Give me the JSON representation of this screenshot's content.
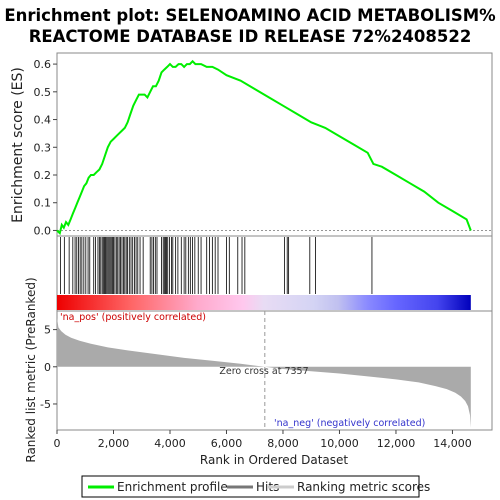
{
  "chart_data": {
    "type": "line",
    "title_line1": "Enrichment plot: SELENOAMINO ACID METABOLISM%",
    "title_line2": "REACTOME DATABASE ID RELEASE 72%2408522",
    "es_panel": {
      "ylabel": "Enrichment score (ES)",
      "yticks": [
        "0.0",
        "0.1",
        "0.2",
        "0.3",
        "0.4",
        "0.5",
        "0.6"
      ],
      "ylim": [
        -0.02,
        0.64
      ],
      "series": [
        {
          "name": "Enrichment profile",
          "x": [
            0,
            100,
            170,
            240,
            320,
            400,
            480,
            560,
            640,
            720,
            800,
            880,
            960,
            1040,
            1120,
            1200,
            1300,
            1400,
            1500,
            1600,
            1700,
            1800,
            1900,
            2000,
            2100,
            2200,
            2300,
            2400,
            2500,
            2600,
            2700,
            2800,
            2900,
            3000,
            3100,
            3200,
            3300,
            3400,
            3500,
            3600,
            3700,
            3800,
            3900,
            4000,
            4100,
            4200,
            4300,
            4400,
            4500,
            4600,
            4700,
            4800,
            4900,
            5000,
            5100,
            5300,
            5500,
            5700,
            6000,
            6500,
            7000,
            7500,
            8000,
            8500,
            9000,
            9500,
            10000,
            10500,
            11000,
            11200,
            11500,
            12000,
            12500,
            13000,
            13500,
            14000,
            14500,
            14650
          ],
          "y": [
            0.0,
            -0.01,
            0.02,
            0.01,
            0.03,
            0.02,
            0.04,
            0.06,
            0.08,
            0.1,
            0.12,
            0.14,
            0.16,
            0.17,
            0.19,
            0.2,
            0.2,
            0.21,
            0.22,
            0.24,
            0.27,
            0.3,
            0.32,
            0.33,
            0.34,
            0.35,
            0.36,
            0.37,
            0.39,
            0.42,
            0.45,
            0.47,
            0.49,
            0.49,
            0.49,
            0.48,
            0.5,
            0.52,
            0.52,
            0.54,
            0.57,
            0.58,
            0.59,
            0.6,
            0.59,
            0.59,
            0.6,
            0.6,
            0.59,
            0.6,
            0.6,
            0.61,
            0.6,
            0.6,
            0.6,
            0.59,
            0.59,
            0.58,
            0.56,
            0.54,
            0.51,
            0.48,
            0.45,
            0.42,
            0.39,
            0.37,
            0.34,
            0.31,
            0.28,
            0.24,
            0.23,
            0.2,
            0.17,
            0.14,
            0.1,
            0.07,
            0.04,
            0.0
          ]
        }
      ]
    },
    "hits": [
      120,
      260,
      430,
      560,
      640,
      700,
      760,
      820,
      880,
      950,
      1020,
      1100,
      1160,
      1300,
      1360,
      1450,
      1500,
      1550,
      1600,
      1640,
      1680,
      1720,
      1760,
      1800,
      1840,
      1880,
      1920,
      1960,
      2000,
      2050,
      2100,
      2150,
      2200,
      2250,
      2300,
      2350,
      2400,
      2450,
      2500,
      2560,
      2620,
      2680,
      2740,
      2800,
      2860,
      2940,
      3050,
      3300,
      3360,
      3420,
      3480,
      3540,
      3700,
      3760,
      3800,
      3840,
      3880,
      3920,
      3980,
      4050,
      4100,
      4200,
      4280,
      4400,
      4500,
      4560,
      4650,
      4720,
      4800,
      4880,
      5000,
      5100,
      5300,
      5400,
      5500,
      5600,
      5700,
      6000,
      6100,
      6400,
      6550,
      6650,
      8050,
      8150,
      8200,
      8950,
      9150,
      11150
    ],
    "ranked_metric": {
      "ylabel": "Ranked list metric (PreRanked)",
      "yticks": [
        "5",
        "0",
        "-5"
      ],
      "ylim": [
        -8.5,
        7.5
      ],
      "x": [
        0,
        50,
        150,
        300,
        500,
        800,
        1200,
        1800,
        2500,
        3500,
        4500,
        5500,
        6500,
        7357,
        8000,
        9000,
        10000,
        11000,
        12000,
        12800,
        13400,
        13800,
        14100,
        14300,
        14450,
        14550,
        14620,
        14650
      ],
      "y": [
        6.6,
        5.3,
        4.8,
        4.3,
        3.9,
        3.5,
        3.1,
        2.6,
        2.2,
        1.7,
        1.2,
        0.8,
        0.4,
        0.0,
        -0.3,
        -0.6,
        -0.9,
        -1.3,
        -1.7,
        -2.1,
        -2.6,
        -3.0,
        -3.5,
        -4.0,
        -4.6,
        -5.3,
        -6.5,
        -8.2
      ],
      "zero_cross_label": "Zero cross at 7357",
      "zero_cross": 7357,
      "pos_label": "'na_pos' (positively correlated)",
      "neg_label": "'na_neg' (negatively correlated)"
    },
    "xlabel": "Rank in Ordered Dataset",
    "xticks": [
      "0",
      "2,000",
      "4,000",
      "6,000",
      "8,000",
      "10,000",
      "12,000",
      "14,000"
    ],
    "xtick_values": [
      0,
      2000,
      4000,
      6000,
      8000,
      10000,
      12000,
      14000
    ],
    "xlim": [
      0,
      15400
    ],
    "legend": [
      {
        "label": "Enrichment profile",
        "color": "#00ee00"
      },
      {
        "label": "Hits",
        "color": "#777777"
      },
      {
        "label": "Ranking metric scores",
        "color": "#cccccc"
      }
    ],
    "colors": {
      "profile": "#00ee00",
      "hit": "#000000",
      "metric_fill": "#aaaaaa",
      "pos_text": "#cc0000",
      "neg_text": "#3333cc",
      "gradient": [
        "#ee0000",
        "#ff7777",
        "#ffbbdd",
        "#ddd0f0",
        "#c0c0f0",
        "#7777ff",
        "#3333dd",
        "#0000bb"
      ]
    }
  }
}
